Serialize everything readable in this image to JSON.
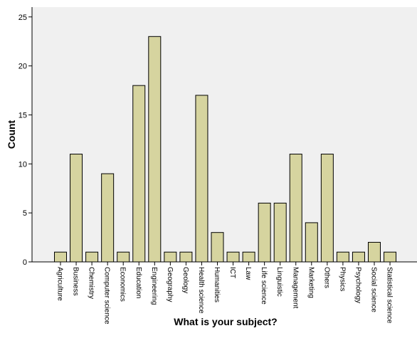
{
  "chart_data": {
    "type": "bar",
    "title": "",
    "xlabel": "What is your subject?",
    "ylabel": "Count",
    "categories": [
      "Agriculture",
      "Business",
      "Chemistry",
      "Computer science",
      "Economics",
      "Education",
      "Engineering",
      "Geography",
      "Geology",
      "Health science",
      "Humanities",
      "ICT",
      "Law",
      "Life science",
      "Linguistic",
      "Management",
      "Marketing",
      "Others",
      "Physics",
      "Psychology",
      "Social science",
      "Statistical science"
    ],
    "values": [
      1,
      11,
      1,
      9,
      1,
      18,
      23,
      1,
      1,
      17,
      3,
      1,
      1,
      6,
      6,
      11,
      4,
      11,
      1,
      1,
      2,
      1
    ],
    "ylim": [
      0,
      26
    ],
    "yticks": [
      0,
      5,
      10,
      15,
      20,
      25
    ],
    "grid": false,
    "legend": "none",
    "colors": {
      "bar_fill": "#d6d49f",
      "bar_stroke": "#000000",
      "plot_background": "#f0f0f0",
      "page_background": "#ffffff"
    }
  }
}
